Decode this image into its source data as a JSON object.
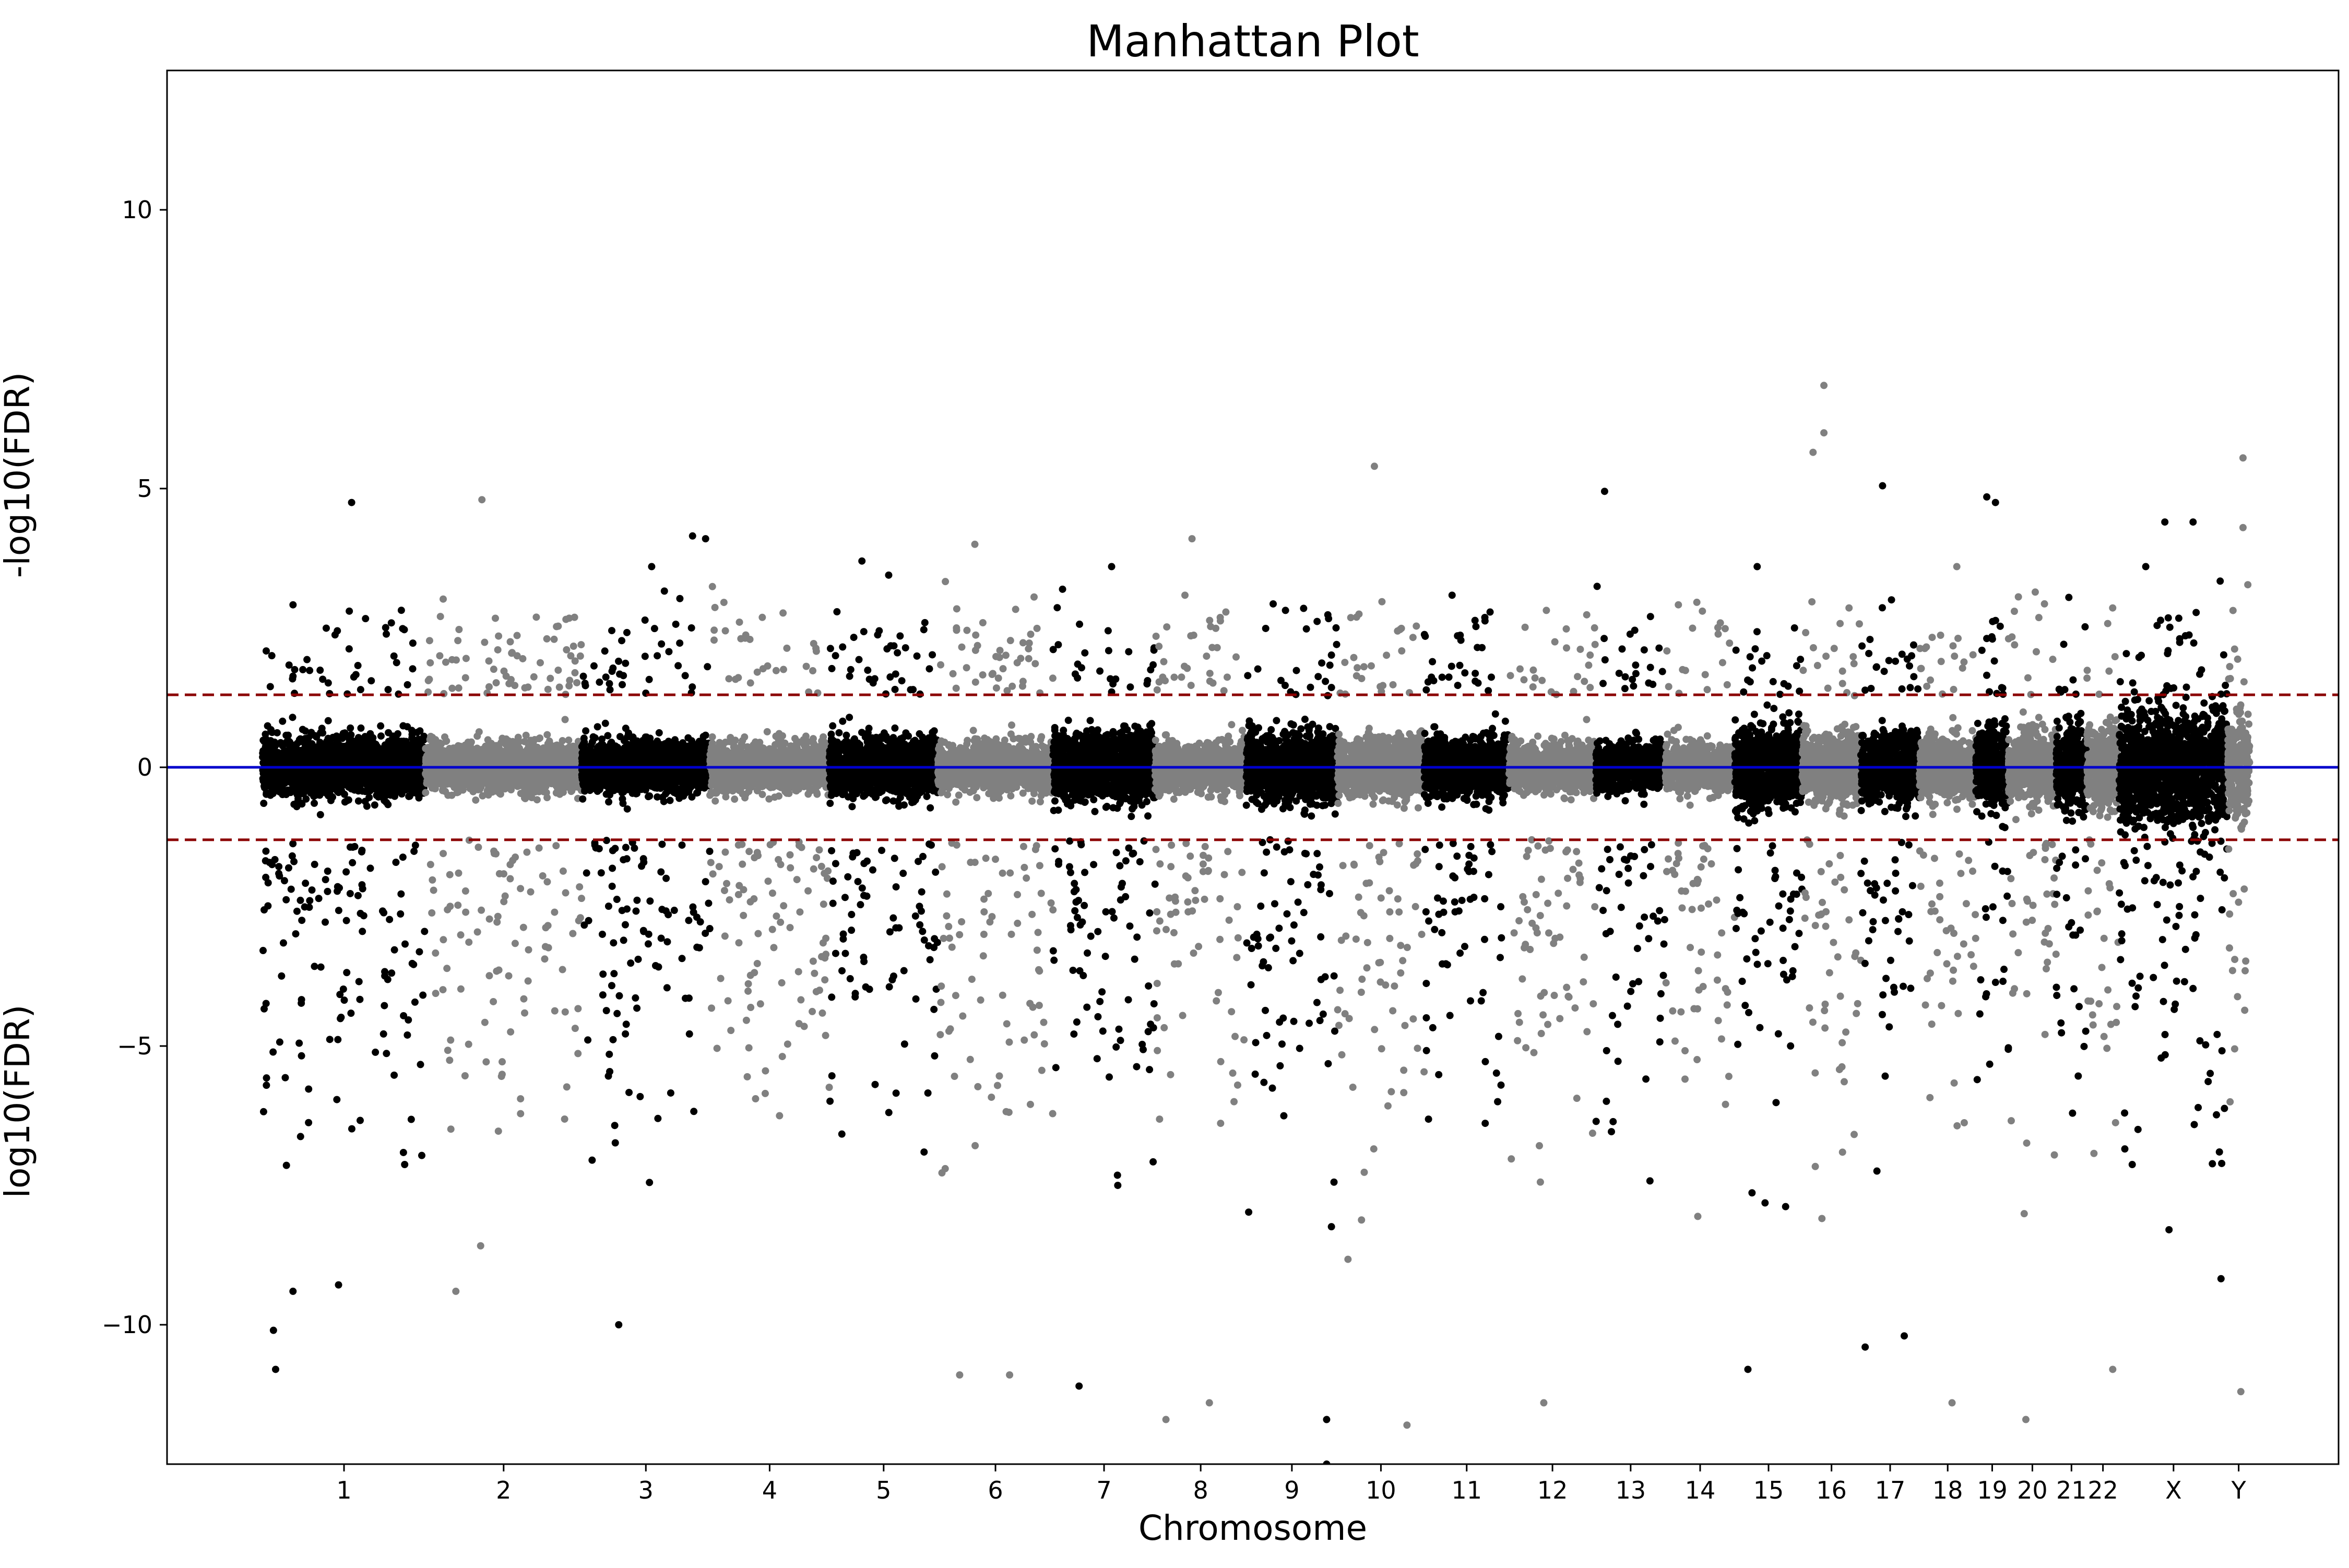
{
  "chart_data": {
    "type": "scatter",
    "title": "Manhattan Plot",
    "xlabel": "Chromosome",
    "ylabel_upper": "-log10(FDR)",
    "ylabel_lower": "log10(FDR)",
    "ylim": [
      -12.5,
      12.5
    ],
    "xlim": [
      0,
      100
    ],
    "yticks": [
      10,
      5,
      0,
      -5,
      -10
    ],
    "ytick_labels": [
      "10",
      "5",
      "0",
      "−5",
      "−10"
    ],
    "chromosomes": [
      {
        "label": "1",
        "start": 4.4,
        "end": 11.9,
        "color": "#000000",
        "base": 0.25,
        "spread": 2.6
      },
      {
        "label": "2",
        "start": 11.9,
        "end": 19.1,
        "color": "#808080",
        "base": 0.2,
        "spread": 2.4
      },
      {
        "label": "3",
        "start": 19.1,
        "end": 25.0,
        "color": "#000000",
        "base": 0.22,
        "spread": 2.6
      },
      {
        "label": "4",
        "start": 25.0,
        "end": 30.5,
        "color": "#808080",
        "base": 0.2,
        "spread": 2.2
      },
      {
        "label": "5",
        "start": 30.5,
        "end": 35.5,
        "color": "#000000",
        "base": 0.25,
        "spread": 2.5
      },
      {
        "label": "6",
        "start": 35.5,
        "end": 40.8,
        "color": "#808080",
        "base": 0.2,
        "spread": 2.6
      },
      {
        "label": "7",
        "start": 40.8,
        "end": 45.5,
        "color": "#000000",
        "base": 0.3,
        "spread": 2.6
      },
      {
        "label": "8",
        "start": 45.5,
        "end": 49.7,
        "color": "#808080",
        "base": 0.2,
        "spread": 2.5
      },
      {
        "label": "9",
        "start": 49.7,
        "end": 53.9,
        "color": "#000000",
        "base": 0.3,
        "spread": 2.8
      },
      {
        "label": "10",
        "start": 53.9,
        "end": 57.9,
        "color": "#808080",
        "base": 0.25,
        "spread": 2.5
      },
      {
        "label": "11",
        "start": 57.9,
        "end": 61.8,
        "color": "#000000",
        "base": 0.25,
        "spread": 2.5
      },
      {
        "label": "12",
        "start": 61.8,
        "end": 65.8,
        "color": "#808080",
        "base": 0.2,
        "spread": 2.4
      },
      {
        "label": "13",
        "start": 65.8,
        "end": 69.0,
        "color": "#000000",
        "base": 0.2,
        "spread": 2.4
      },
      {
        "label": "14",
        "start": 69.0,
        "end": 72.2,
        "color": "#808080",
        "base": 0.2,
        "spread": 2.2
      },
      {
        "label": "15",
        "start": 72.2,
        "end": 75.3,
        "color": "#000000",
        "base": 0.35,
        "spread": 2.7
      },
      {
        "label": "16",
        "start": 75.3,
        "end": 78.0,
        "color": "#808080",
        "base": 0.3,
        "spread": 2.5
      },
      {
        "label": "17",
        "start": 78.0,
        "end": 80.7,
        "color": "#000000",
        "base": 0.3,
        "spread": 2.5
      },
      {
        "label": "18",
        "start": 80.7,
        "end": 83.3,
        "color": "#808080",
        "base": 0.25,
        "spread": 2.4
      },
      {
        "label": "19",
        "start": 83.3,
        "end": 84.8,
        "color": "#000000",
        "base": 0.35,
        "spread": 2.6
      },
      {
        "label": "20",
        "start": 84.8,
        "end": 87.0,
        "color": "#808080",
        "base": 0.3,
        "spread": 2.4
      },
      {
        "label": "21",
        "start": 87.0,
        "end": 88.4,
        "color": "#000000",
        "base": 0.35,
        "spread": 2.5
      },
      {
        "label": "22",
        "start": 88.4,
        "end": 89.9,
        "color": "#808080",
        "base": 0.35,
        "spread": 2.4
      },
      {
        "label": "X",
        "start": 89.9,
        "end": 94.9,
        "color": "#000000",
        "base": 0.5,
        "spread": 2.8
      },
      {
        "label": "Y",
        "start": 94.9,
        "end": 95.9,
        "color": "#808080",
        "base": 0.45,
        "spread": 2.6
      }
    ],
    "reference_lines": [
      {
        "y": 0,
        "color": "#0000cc",
        "style": "solid"
      },
      {
        "y": 1.3,
        "color": "#8b0000",
        "style": "dashed"
      },
      {
        "y": -1.3,
        "color": "#8b0000",
        "style": "dashed"
      }
    ],
    "highlighted_points": [
      {
        "chrom": "1",
        "x": 8.5,
        "y": 4.75
      },
      {
        "chrom": "2",
        "x": 14.5,
        "y": 4.8
      },
      {
        "chrom": "3",
        "x": 24.2,
        "y": 4.15
      },
      {
        "chrom": "3",
        "x": 24.8,
        "y": 4.1
      },
      {
        "chrom": "5",
        "x": 32.0,
        "y": 3.7
      },
      {
        "chrom": "6",
        "x": 37.2,
        "y": 4.0
      },
      {
        "chrom": "8",
        "x": 47.2,
        "y": 4.1
      },
      {
        "chrom": "10",
        "x": 55.6,
        "y": 5.4
      },
      {
        "chrom": "13",
        "x": 66.2,
        "y": 4.95
      },
      {
        "chrom": "16",
        "x": 76.3,
        "y": 6.85
      },
      {
        "chrom": "16",
        "x": 76.3,
        "y": 6.0
      },
      {
        "chrom": "16",
        "x": 75.8,
        "y": 5.65
      },
      {
        "chrom": "17",
        "x": 79.0,
        "y": 5.05
      },
      {
        "chrom": "19",
        "x": 83.8,
        "y": 4.85
      },
      {
        "chrom": "19",
        "x": 84.2,
        "y": 4.75
      },
      {
        "chrom": "X",
        "x": 92.0,
        "y": 4.4
      },
      {
        "chrom": "X",
        "x": 93.3,
        "y": 4.4
      },
      {
        "chrom": "Y",
        "x": 95.6,
        "y": 5.55
      },
      {
        "chrom": "Y",
        "x": 95.6,
        "y": 4.3
      },
      {
        "chrom": "1",
        "x": 5.0,
        "y": -10.8
      },
      {
        "chrom": "1",
        "x": 4.9,
        "y": -10.1
      },
      {
        "chrom": "1",
        "x": 5.8,
        "y": -9.4
      },
      {
        "chrom": "2",
        "x": 13.3,
        "y": -9.4
      },
      {
        "chrom": "3",
        "x": 20.8,
        "y": -10.0
      },
      {
        "chrom": "6",
        "x": 36.5,
        "y": -10.9
      },
      {
        "chrom": "6",
        "x": 38.8,
        "y": -10.9
      },
      {
        "chrom": "7",
        "x": 42.0,
        "y": -11.1
      },
      {
        "chrom": "8",
        "x": 46.0,
        "y": -11.7
      },
      {
        "chrom": "8",
        "x": 48.0,
        "y": -11.4
      },
      {
        "chrom": "9",
        "x": 53.4,
        "y": -12.5
      },
      {
        "chrom": "9",
        "x": 53.4,
        "y": -11.7
      },
      {
        "chrom": "10",
        "x": 57.1,
        "y": -11.8
      },
      {
        "chrom": "12",
        "x": 63.4,
        "y": -11.4
      },
      {
        "chrom": "15",
        "x": 72.8,
        "y": -10.8
      },
      {
        "chrom": "17",
        "x": 78.2,
        "y": -10.4
      },
      {
        "chrom": "17",
        "x": 80.0,
        "y": -10.2
      },
      {
        "chrom": "18",
        "x": 82.2,
        "y": -11.4
      },
      {
        "chrom": "20",
        "x": 85.6,
        "y": -11.7
      },
      {
        "chrom": "22",
        "x": 89.6,
        "y": -10.8
      },
      {
        "chrom": "Y",
        "x": 95.5,
        "y": -11.2
      }
    ]
  }
}
